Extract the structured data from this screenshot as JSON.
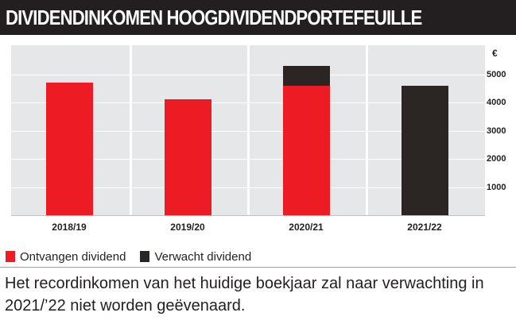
{
  "header": {
    "title": "DIVIDENDINKOMEN HOOGDIVIDENDPORTEFEUILLE"
  },
  "colors": {
    "header_bg": "#231f20",
    "plot_bg": "#e6e7e8",
    "received": "#ed1c24",
    "expected": "#2b2523"
  },
  "chart_data": {
    "type": "bar",
    "stacked": true,
    "categories": [
      "2018/19",
      "2019/20",
      "2020/21",
      "2021/22"
    ],
    "series": [
      {
        "name": "Ontvangen dividend",
        "values": [
          4700,
          4100,
          4600,
          0
        ]
      },
      {
        "name": "Verwacht dividend",
        "values": [
          0,
          0,
          700,
          4600
        ]
      }
    ],
    "y_unit": "€",
    "y_ticks": [
      1000,
      2000,
      3000,
      4000,
      5000
    ],
    "y_tick_labels": [
      "1000",
      "2000",
      "3000",
      "4000",
      "5000"
    ],
    "ylim": [
      0,
      6000
    ],
    "y_axis_position": "right",
    "grid": true,
    "legend_position": "bottom-left"
  },
  "legend": {
    "received_label": "Ontvangen dividend",
    "expected_label": "Verwacht dividend"
  },
  "caption": {
    "text": "Het recordinkomen van het huidige boekjaar zal naar verwachting in 2021/’22 niet worden geëvenaard."
  }
}
